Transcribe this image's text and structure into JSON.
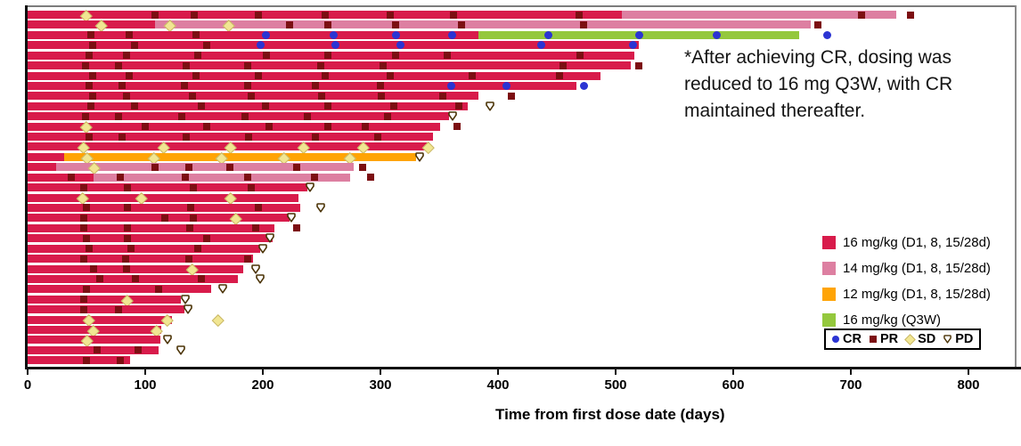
{
  "annotation": {
    "lines": [
      "*After achieving CR, dosing was",
      "reduced to 16 mg Q3W, with CR",
      "maintained thereafter."
    ]
  },
  "x_axis": {
    "title": "Time from first dose date (days)",
    "ticks": [
      0,
      100,
      200,
      300,
      400,
      500,
      600,
      700,
      800
    ],
    "min": 0,
    "max": 845
  },
  "colors": {
    "dose16": "#d81b4b",
    "dose14": "#dd7fa1",
    "dose12": "#ffa405",
    "doseQ3W": "#94c83d",
    "CR": "#2b34d3",
    "PR": "#7c0f12",
    "SD_fill": "#f1e692",
    "SD_border": "#c9b766",
    "PD_stroke": "#4b3306"
  },
  "legend": {
    "dose_items": [
      {
        "key": "dose16",
        "label": "16 mg/kg (D1, 8, 15/28d)"
      },
      {
        "key": "dose14",
        "label": "14 mg/kg (D1, 8, 15/28d)"
      },
      {
        "key": "dose12",
        "label": "12 mg/kg (D1, 8, 15/28d)"
      },
      {
        "key": "doseQ3W",
        "label": "16 mg/kg (Q3W)"
      }
    ],
    "response_items": [
      {
        "key": "CR",
        "label": "CR"
      },
      {
        "key": "PR",
        "label": "PR"
      },
      {
        "key": "SD",
        "label": "SD"
      },
      {
        "key": "PD",
        "label": "PD"
      }
    ]
  },
  "chart_data": {
    "type": "bar",
    "subtype": "swimmer-plot-horizontal",
    "unit": "days",
    "xlabel": "Time from first dose date (days)",
    "xlim": [
      0,
      845
    ],
    "grid": false,
    "rows": [
      {
        "segments": [
          [
            "dose16",
            0,
            505
          ],
          [
            "dose14",
            505,
            739
          ]
        ],
        "markers": [
          [
            "SD",
            49
          ],
          [
            "PR",
            108
          ],
          [
            "PR",
            142
          ],
          [
            "PR",
            196
          ],
          [
            "PR",
            253
          ],
          [
            "PR",
            308
          ],
          [
            "PR",
            362
          ],
          [
            "PR",
            469
          ],
          [
            "PR",
            709
          ],
          [
            "PR",
            751
          ]
        ]
      },
      {
        "segments": [
          [
            "dose16",
            0,
            108
          ],
          [
            "dose14",
            108,
            666
          ]
        ],
        "markers": [
          [
            "SD",
            62
          ],
          [
            "SD",
            120
          ],
          [
            "SD",
            170
          ],
          [
            "PR",
            223
          ],
          [
            "PR",
            255
          ],
          [
            "PR",
            313
          ],
          [
            "PR",
            369
          ],
          [
            "PR",
            473
          ],
          [
            "PR",
            672
          ]
        ]
      },
      {
        "segments": [
          [
            "dose16",
            0,
            383
          ],
          [
            "doseQ3W",
            383,
            656
          ]
        ],
        "markers": [
          [
            "PR",
            54
          ],
          [
            "PR",
            86
          ],
          [
            "PR",
            143
          ],
          [
            "CR",
            203
          ],
          [
            "CR",
            260
          ],
          [
            "CR",
            313
          ],
          [
            "CR",
            361
          ],
          [
            "CR",
            443
          ],
          [
            "CR",
            520
          ],
          [
            "CR",
            586
          ],
          [
            "CR",
            680
          ]
        ]
      },
      {
        "segments": [
          [
            "dose16",
            0,
            520
          ]
        ],
        "markers": [
          [
            "PR",
            55
          ],
          [
            "PR",
            91
          ],
          [
            "PR",
            152
          ],
          [
            "CR",
            198
          ],
          [
            "CR",
            262
          ],
          [
            "CR",
            317
          ],
          [
            "CR",
            437
          ],
          [
            "CR",
            515
          ]
        ]
      },
      {
        "segments": [
          [
            "dose16",
            0,
            516
          ]
        ],
        "markers": [
          [
            "PR",
            52
          ],
          [
            "PR",
            84
          ],
          [
            "PR",
            145
          ],
          [
            "PR",
            203
          ],
          [
            "PR",
            255
          ],
          [
            "PR",
            313
          ],
          [
            "PR",
            357
          ],
          [
            "PR",
            470
          ]
        ]
      },
      {
        "segments": [
          [
            "dose16",
            0,
            513
          ]
        ],
        "markers": [
          [
            "PR",
            49
          ],
          [
            "PR",
            77
          ],
          [
            "PR",
            135
          ],
          [
            "PR",
            187
          ],
          [
            "PR",
            249
          ],
          [
            "PR",
            302
          ],
          [
            "PR",
            455
          ],
          [
            "PR",
            520
          ]
        ]
      },
      {
        "segments": [
          [
            "dose16",
            0,
            487
          ]
        ],
        "markers": [
          [
            "PR",
            55
          ],
          [
            "PR",
            86
          ],
          [
            "PR",
            143
          ],
          [
            "PR",
            196
          ],
          [
            "PR",
            253
          ],
          [
            "PR",
            308
          ],
          [
            "PR",
            378
          ],
          [
            "PR",
            452
          ]
        ]
      },
      {
        "segments": [
          [
            "dose16",
            0,
            467
          ]
        ],
        "markers": [
          [
            "PR",
            52
          ],
          [
            "PR",
            80
          ],
          [
            "PR",
            133
          ],
          [
            "PR",
            187
          ],
          [
            "PR",
            245
          ],
          [
            "PR",
            300
          ],
          [
            "CR",
            360
          ],
          [
            "CR",
            407
          ],
          [
            "CR",
            473
          ]
        ]
      },
      {
        "segments": [
          [
            "dose16",
            0,
            383
          ]
        ],
        "markers": [
          [
            "PR",
            55
          ],
          [
            "PR",
            84
          ],
          [
            "PR",
            140
          ],
          [
            "PR",
            190
          ],
          [
            "PR",
            250
          ],
          [
            "PR",
            301
          ],
          [
            "PR",
            353
          ],
          [
            "PR",
            411
          ]
        ]
      },
      {
        "segments": [
          [
            "dose16",
            0,
            374
          ]
        ],
        "markers": [
          [
            "PR",
            54
          ],
          [
            "PR",
            91
          ],
          [
            "PR",
            148
          ],
          [
            "PR",
            202
          ],
          [
            "PR",
            255
          ],
          [
            "PR",
            311
          ],
          [
            "PR",
            367
          ],
          [
            "PD",
            393
          ]
        ]
      },
      {
        "segments": [
          [
            "dose16",
            0,
            358
          ]
        ],
        "markers": [
          [
            "PR",
            49
          ],
          [
            "PR",
            77
          ],
          [
            "PR",
            131
          ],
          [
            "PR",
            185
          ],
          [
            "PR",
            238
          ],
          [
            "PR",
            306
          ],
          [
            "PD",
            361
          ]
        ]
      },
      {
        "segments": [
          [
            "dose16",
            0,
            351
          ]
        ],
        "markers": [
          [
            "SD",
            49
          ],
          [
            "PR",
            100
          ],
          [
            "PR",
            152
          ],
          [
            "PR",
            205
          ],
          [
            "PR",
            255
          ],
          [
            "PR",
            287
          ],
          [
            "PR",
            365
          ]
        ]
      },
      {
        "segments": [
          [
            "dose16",
            0,
            345
          ]
        ],
        "markers": [
          [
            "PR",
            52
          ],
          [
            "PR",
            80
          ],
          [
            "PR",
            135
          ],
          [
            "PR",
            188
          ],
          [
            "PR",
            245
          ],
          [
            "PR",
            298
          ]
        ]
      },
      {
        "segments": [
          [
            "dose16",
            0,
            342
          ]
        ],
        "markers": [
          [
            "SD",
            47
          ],
          [
            "SD",
            115
          ],
          [
            "SD",
            172
          ],
          [
            "SD",
            234
          ],
          [
            "SD",
            285
          ],
          [
            "SD",
            340
          ]
        ]
      },
      {
        "segments": [
          [
            "dose16",
            0,
            31
          ],
          [
            "dose12",
            31,
            330
          ]
        ],
        "markers": [
          [
            "SD",
            50
          ],
          [
            "SD",
            107
          ],
          [
            "SD",
            164
          ],
          [
            "SD",
            217
          ],
          [
            "SD",
            273
          ],
          [
            "PD",
            333
          ]
        ]
      },
      {
        "segments": [
          [
            "dose16",
            0,
            24
          ],
          [
            "dose14",
            24,
            277
          ]
        ],
        "markers": [
          [
            "SD",
            56
          ],
          [
            "PR",
            108
          ],
          [
            "PR",
            137
          ],
          [
            "PR",
            172
          ],
          [
            "PR",
            229
          ],
          [
            "PR",
            285
          ]
        ]
      },
      {
        "segments": [
          [
            "dose16",
            0,
            56
          ],
          [
            "dose14",
            56,
            274
          ]
        ],
        "markers": [
          [
            "PR",
            37
          ],
          [
            "PR",
            79
          ],
          [
            "PR",
            134
          ],
          [
            "PR",
            187
          ],
          [
            "PR",
            244
          ],
          [
            "PR",
            292
          ]
        ]
      },
      {
        "segments": [
          [
            "dose16",
            0,
            238
          ]
        ],
        "markers": [
          [
            "PR",
            48
          ],
          [
            "PR",
            85
          ],
          [
            "PR",
            141
          ],
          [
            "PR",
            190
          ],
          [
            "PD",
            240
          ]
        ]
      },
      {
        "segments": [
          [
            "dose16",
            0,
            230
          ]
        ],
        "markers": [
          [
            "SD",
            46
          ],
          [
            "SD",
            96
          ],
          [
            "SD",
            172
          ]
        ]
      },
      {
        "segments": [
          [
            "dose16",
            0,
            232
          ]
        ],
        "markers": [
          [
            "PR",
            50
          ],
          [
            "PR",
            85
          ],
          [
            "PR",
            139
          ],
          [
            "PR",
            196
          ],
          [
            "PD",
            249
          ]
        ]
      },
      {
        "segments": [
          [
            "dose16",
            0,
            223
          ]
        ],
        "markers": [
          [
            "PR",
            48
          ],
          [
            "PR",
            117
          ],
          [
            "PR",
            141
          ],
          [
            "SD",
            176
          ],
          [
            "PD",
            224
          ]
        ]
      },
      {
        "segments": [
          [
            "dose16",
            0,
            210
          ]
        ],
        "markers": [
          [
            "PR",
            48
          ],
          [
            "PR",
            85
          ],
          [
            "PR",
            138
          ],
          [
            "PR",
            194
          ],
          [
            "PR",
            229
          ]
        ]
      },
      {
        "segments": [
          [
            "dose16",
            0,
            208
          ]
        ],
        "markers": [
          [
            "PR",
            50
          ],
          [
            "PR",
            85
          ],
          [
            "PR",
            152
          ],
          [
            "PD",
            206
          ]
        ]
      },
      {
        "segments": [
          [
            "dose16",
            0,
            198
          ]
        ],
        "markers": [
          [
            "PR",
            52
          ],
          [
            "PR",
            88
          ],
          [
            "PR",
            145
          ],
          [
            "PD",
            200
          ]
        ]
      },
      {
        "segments": [
          [
            "dose16",
            0,
            192
          ]
        ],
        "markers": [
          [
            "PR",
            48
          ],
          [
            "PR",
            83
          ],
          [
            "PR",
            137
          ],
          [
            "PR",
            187
          ]
        ]
      },
      {
        "segments": [
          [
            "dose16",
            0,
            183
          ]
        ],
        "markers": [
          [
            "PR",
            56
          ],
          [
            "PR",
            84
          ],
          [
            "SD",
            139
          ],
          [
            "PD",
            194
          ]
        ]
      },
      {
        "segments": [
          [
            "dose16",
            0,
            179
          ]
        ],
        "markers": [
          [
            "PR",
            61
          ],
          [
            "PR",
            92
          ],
          [
            "PR",
            148
          ],
          [
            "PD",
            198
          ]
        ]
      },
      {
        "segments": [
          [
            "dose16",
            0,
            156
          ]
        ],
        "markers": [
          [
            "PR",
            50
          ],
          [
            "PR",
            111
          ],
          [
            "PD",
            166
          ]
        ]
      },
      {
        "segments": [
          [
            "dose16",
            0,
            130
          ]
        ],
        "markers": [
          [
            "PR",
            48
          ],
          [
            "SD",
            84
          ],
          [
            "PD",
            134
          ]
        ]
      },
      {
        "segments": [
          [
            "dose16",
            0,
            133
          ]
        ],
        "markers": [
          [
            "PR",
            48
          ],
          [
            "PR",
            77
          ],
          [
            "PD",
            136
          ]
        ]
      },
      {
        "segments": [
          [
            "dose16",
            0,
            123
          ]
        ],
        "markers": [
          [
            "SD",
            51
          ],
          [
            "SD",
            118
          ],
          [
            "SD",
            161
          ]
        ]
      },
      {
        "segments": [
          [
            "dose16",
            0,
            114
          ]
        ],
        "markers": [
          [
            "SD",
            55
          ],
          [
            "SD",
            109
          ]
        ]
      },
      {
        "segments": [
          [
            "dose16",
            0,
            113
          ]
        ],
        "markers": [
          [
            "SD",
            50
          ],
          [
            "PD",
            119
          ]
        ]
      },
      {
        "segments": [
          [
            "dose16",
            0,
            111
          ]
        ],
        "markers": [
          [
            "PR",
            59
          ],
          [
            "PR",
            94
          ],
          [
            "PD",
            130
          ]
        ]
      },
      {
        "segments": [
          [
            "dose16",
            0,
            87
          ]
        ],
        "markers": [
          [
            "PR",
            50
          ],
          [
            "PR",
            79
          ]
        ]
      }
    ]
  }
}
